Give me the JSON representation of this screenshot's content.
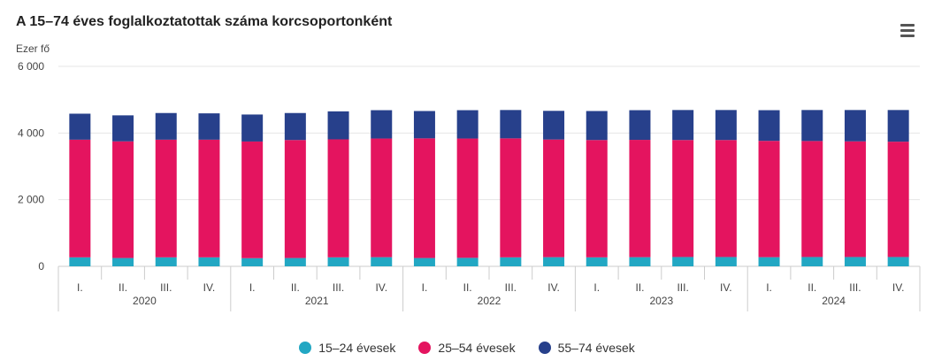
{
  "title": "A 15–74 éves foglalkoztatottak száma korcsoportonként",
  "menu_icon": "hamburger-menu-icon",
  "chart_data": {
    "type": "bar",
    "stacked": true,
    "y_unit_label": "Ezer fő",
    "ylim": [
      0,
      6000
    ],
    "yticks": [
      0,
      2000,
      4000,
      6000
    ],
    "ytick_labels": [
      "0",
      "2 000",
      "4 000",
      "6 000"
    ],
    "grid": true,
    "legend_position": "bottom-center",
    "quarters": [
      "I.",
      "II.",
      "III.",
      "IV."
    ],
    "years": [
      "2020",
      "2021",
      "2022",
      "2023",
      "2024"
    ],
    "series": [
      {
        "name": "15–24 évesek",
        "color": "#22a7c3",
        "values": [
          270,
          250,
          270,
          270,
          245,
          250,
          270,
          275,
          250,
          255,
          270,
          275,
          270,
          275,
          280,
          280,
          275,
          280,
          280,
          280
        ]
      },
      {
        "name": "25–54 évesek",
        "color": "#e4145f",
        "values": [
          3530,
          3500,
          3530,
          3530,
          3500,
          3540,
          3540,
          3560,
          3590,
          3580,
          3570,
          3530,
          3520,
          3520,
          3510,
          3510,
          3490,
          3480,
          3470,
          3460
        ]
      },
      {
        "name": "55–74 évesek",
        "color": "#27408b",
        "values": [
          780,
          780,
          800,
          790,
          810,
          810,
          840,
          850,
          820,
          850,
          850,
          860,
          870,
          890,
          900,
          900,
          920,
          930,
          940,
          950
        ]
      }
    ]
  }
}
